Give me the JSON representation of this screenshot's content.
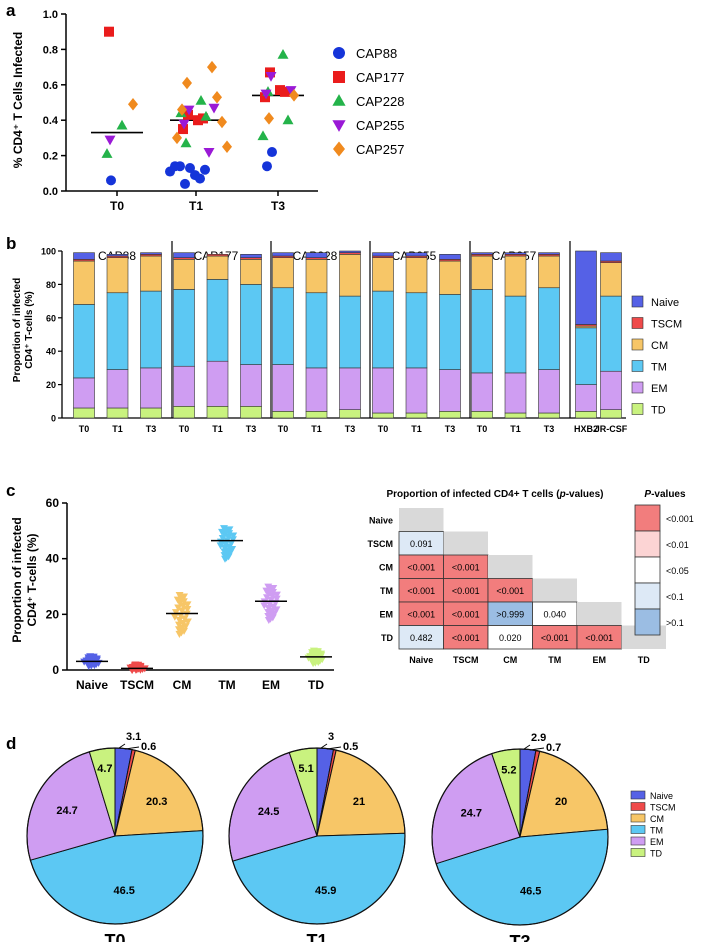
{
  "colors": {
    "Naive": "#5561e6",
    "TSCM": "#ef4a4a",
    "CM": "#f7c667",
    "TM": "#5cc8f3",
    "EM": "#cf9df2",
    "TD": "#c9f27f",
    "CAP88": "#1534d9",
    "CAP177": "#ea1c1c",
    "CAP228": "#24b34a",
    "CAP255": "#9a19d6",
    "CAP257": "#f08a1e",
    "pv_lt0001": "#f27d7d",
    "pv_lt001": "#fcd4d4",
    "pv_lt005": "#ffffff",
    "pv_lt01": "#dde9f6",
    "pv_gt01": "#9bbde3",
    "na": "#d9d9d9"
  },
  "panels": {
    "a": {
      "label": "a",
      "chart_data": {
        "type": "scatter",
        "ylabel": "% CD4⁺ T Cells Infected",
        "ylim": [
          0.0,
          1.0
        ],
        "yticks": [
          "0.0",
          "0.2",
          "0.4",
          "0.6",
          "0.8",
          "1.0"
        ],
        "categories": [
          "T0",
          "T1",
          "T3"
        ],
        "medians": [
          0.33,
          0.4,
          0.54
        ],
        "series": [
          {
            "name": "CAP88",
            "shape": "circle",
            "points": [
              [
                "T0",
                0.06
              ],
              [
                "T1",
                0.13
              ],
              [
                "T1",
                0.04
              ],
              [
                "T1",
                0.09
              ],
              [
                "T1",
                0.14
              ],
              [
                "T1",
                0.07
              ],
              [
                "T1",
                0.14
              ],
              [
                "T1",
                0.12
              ],
              [
                "T1",
                0.11
              ],
              [
                "T3",
                0.22
              ],
              [
                "T3",
                0.14
              ]
            ]
          },
          {
            "name": "CAP177",
            "shape": "square",
            "points": [
              [
                "T0",
                0.9
              ],
              [
                "T1",
                0.43
              ],
              [
                "T1",
                0.4
              ],
              [
                "T1",
                0.35
              ],
              [
                "T1",
                0.41
              ],
              [
                "T3",
                0.67
              ],
              [
                "T3",
                0.57
              ],
              [
                "T3",
                0.53
              ],
              [
                "T3",
                0.56
              ]
            ]
          },
          {
            "name": "CAP228",
            "shape": "triangle-up",
            "points": [
              [
                "T0",
                0.37
              ],
              [
                "T0",
                0.21
              ],
              [
                "T1",
                0.51
              ],
              [
                "T1",
                0.27
              ],
              [
                "T1",
                0.42
              ],
              [
                "T1",
                0.44
              ],
              [
                "T3",
                0.77
              ],
              [
                "T3",
                0.56
              ],
              [
                "T3",
                0.4
              ],
              [
                "T3",
                0.31
              ]
            ]
          },
          {
            "name": "CAP255",
            "shape": "triangle-down",
            "points": [
              [
                "T0",
                0.29
              ],
              [
                "T1",
                0.46
              ],
              [
                "T1",
                0.22
              ],
              [
                "T1",
                0.38
              ],
              [
                "T1",
                0.47
              ],
              [
                "T3",
                0.65
              ],
              [
                "T3",
                0.57
              ],
              [
                "T3",
                0.55
              ]
            ]
          },
          {
            "name": "CAP257",
            "shape": "diamond",
            "points": [
              [
                "T0",
                0.49
              ],
              [
                "T1",
                0.7
              ],
              [
                "T1",
                0.61
              ],
              [
                "T1",
                0.53
              ],
              [
                "T1",
                0.46
              ],
              [
                "T1",
                0.39
              ],
              [
                "T1",
                0.3
              ],
              [
                "T1",
                0.25
              ],
              [
                "T3",
                0.54
              ],
              [
                "T3",
                0.41
              ]
            ]
          }
        ]
      }
    },
    "b": {
      "label": "b",
      "chart_data": {
        "type": "bar",
        "stacked": true,
        "ylabel_line1": "Proportion of infected",
        "ylabel_line2": "CD4⁺ T-cells (%)",
        "ylim": [
          0,
          100
        ],
        "yticks": [
          "0",
          "20",
          "40",
          "60",
          "80",
          "100"
        ],
        "groups": [
          "CAP88",
          "CAP177",
          "CAP228",
          "CAP255",
          "CAP257",
          ""
        ],
        "categories": [
          "T0",
          "T1",
          "T3",
          "T0",
          "T1",
          "T3",
          "T0",
          "T1",
          "T3",
          "T0",
          "T1",
          "T3",
          "T0",
          "T1",
          "T3",
          "HXB2",
          "JR-CSF"
        ],
        "stack_order": [
          "TD",
          "EM",
          "TM",
          "CM",
          "TSCM",
          "Naive"
        ],
        "legend": [
          "Naive",
          "TSCM",
          "CM",
          "TM",
          "EM",
          "TD"
        ],
        "series": [
          {
            "name": "TD",
            "values": [
              6,
              6,
              6,
              7,
              7,
              7,
              4,
              4,
              5,
              3,
              3,
              4,
              4,
              3,
              3,
              4,
              5
            ]
          },
          {
            "name": "EM",
            "values": [
              18,
              23,
              24,
              24,
              27,
              25,
              28,
              26,
              25,
              27,
              27,
              25,
              23,
              24,
              26,
              16,
              23
            ]
          },
          {
            "name": "TM",
            "values": [
              44,
              46,
              46,
              46,
              49,
              48,
              46,
              45,
              43,
              46,
              45,
              45,
              50,
              46,
              49,
              34,
              45
            ]
          },
          {
            "name": "CM",
            "values": [
              26,
              21,
              21,
              18,
              14,
              15,
              18,
              20,
              25,
              20,
              21,
              20,
              20,
              24,
              19,
              1,
              20
            ]
          },
          {
            "name": "TSCM",
            "values": [
              1,
              1,
              1,
              1,
              1,
              1,
              1,
              1,
              1,
              1,
              1,
              1,
              1,
              1,
              1,
              1,
              1
            ]
          },
          {
            "name": "Naive",
            "values": [
              4,
              1,
              1,
              3,
              0,
              2,
              2,
              3,
              1,
              2,
              2,
              3,
              1,
              1,
              1,
              44,
              5
            ]
          }
        ]
      }
    },
    "c": {
      "label": "c",
      "chart_data": {
        "type": "scatter",
        "ylabel_line1": "Proportion of infected",
        "ylabel_line2": "CD4⁺ T-cells (%)",
        "ylim": [
          0,
          60
        ],
        "yticks": [
          "0",
          "20",
          "40",
          "60"
        ],
        "categories": [
          "Naive",
          "TSCM",
          "CM",
          "TM",
          "EM",
          "TD"
        ],
        "medians": [
          3.1,
          0.6,
          20.3,
          46.5,
          24.7,
          4.7
        ],
        "ranges": [
          [
            1.5,
            5
          ],
          [
            0,
            2
          ],
          [
            13,
            27
          ],
          [
            40,
            51
          ],
          [
            18,
            30
          ],
          [
            2.5,
            7
          ]
        ]
      },
      "table": {
        "title_pre": "Proportion of infected CD4+ T cells (",
        "title_em": "p",
        "title_post": "-values)",
        "rows": [
          "Naive",
          "TSCM",
          "CM",
          "TM",
          "EM",
          "TD"
        ],
        "cols": [
          "Naive",
          "TSCM",
          "CM",
          "TM",
          "EM",
          "TD"
        ],
        "cells": [
          [],
          [
            [
              "0.091",
              "pv_lt01"
            ]
          ],
          [
            [
              "<0.001",
              "pv_lt0001"
            ],
            [
              "<0.001",
              "pv_lt0001"
            ]
          ],
          [
            [
              "<0.001",
              "pv_lt0001"
            ],
            [
              "<0.001",
              "pv_lt0001"
            ],
            [
              "<0.001",
              "pv_lt0001"
            ]
          ],
          [
            [
              "<0.001",
              "pv_lt0001"
            ],
            [
              "<0.001",
              "pv_lt0001"
            ],
            [
              ">0.999",
              "pv_gt01"
            ],
            [
              "0.040",
              "pv_lt005"
            ]
          ],
          [
            [
              "0.482",
              "pv_lt01"
            ],
            [
              "<0.001",
              "pv_lt0001"
            ],
            [
              "0.020",
              "pv_lt005"
            ],
            [
              "<0.001",
              "pv_lt0001"
            ],
            [
              "<0.001",
              "pv_lt0001"
            ]
          ]
        ],
        "legend_title_em": "P",
        "legend_title_post": "-values",
        "legend": [
          {
            "label": "<0.001",
            "key": "pv_lt0001"
          },
          {
            "label": "<0.01",
            "key": "pv_lt001"
          },
          {
            "label": "<0.05",
            "key": "pv_lt005"
          },
          {
            "label": "<0.1",
            "key": "pv_lt01"
          },
          {
            "label": ">0.1",
            "key": "pv_gt01"
          }
        ]
      }
    },
    "d": {
      "label": "d",
      "chart_data": [
        {
          "type": "pie",
          "title": "T0",
          "categories": [
            "Naive",
            "TSCM",
            "CM",
            "TM",
            "EM",
            "TD"
          ],
          "values": [
            3.1,
            0.6,
            20.3,
            46.5,
            24.7,
            4.7
          ]
        },
        {
          "type": "pie",
          "title": "T1",
          "categories": [
            "Naive",
            "TSCM",
            "CM",
            "TM",
            "EM",
            "TD"
          ],
          "values": [
            3.0,
            0.5,
            21.0,
            45.9,
            24.5,
            5.1
          ]
        },
        {
          "type": "pie",
          "title": "T3",
          "categories": [
            "Naive",
            "TSCM",
            "CM",
            "TM",
            "EM",
            "TD"
          ],
          "values": [
            2.9,
            0.7,
            20.0,
            46.5,
            24.7,
            5.2
          ]
        }
      ],
      "legend": [
        "Naive",
        "TSCM",
        "CM",
        "TM",
        "EM",
        "TD"
      ]
    }
  }
}
